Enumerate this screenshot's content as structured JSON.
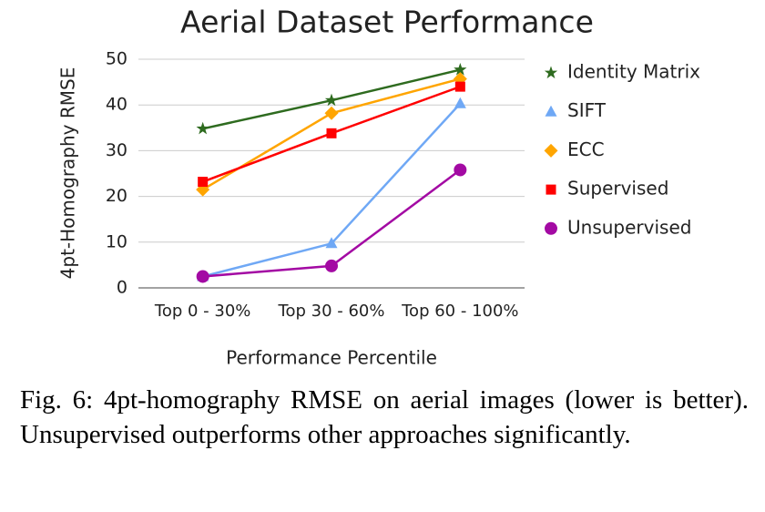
{
  "chart_data": {
    "type": "line",
    "title": "Aerial Dataset Performance",
    "x_label": "Performance Percentile",
    "y_label": "4pt-Homography RMSE",
    "categories": [
      "Top 0 - 30%",
      "Top 30 - 60%",
      "Top 60 - 100%"
    ],
    "series": [
      {
        "name": "Identity Matrix",
        "color": "#2e6b1f",
        "marker": "star",
        "values": [
          34.8,
          41,
          47.7
        ]
      },
      {
        "name": "SIFT",
        "color": "#6fa8f5",
        "marker": "triangle",
        "values": [
          2.5,
          9.7,
          40.3
        ]
      },
      {
        "name": "ECC",
        "color": "#ffa500",
        "marker": "diamond",
        "values": [
          21.5,
          38.2,
          45.7
        ]
      },
      {
        "name": "Supervised",
        "color": "#ff0000",
        "marker": "square",
        "values": [
          23.2,
          33.8,
          44
        ]
      },
      {
        "name": "Unsupervised",
        "color": "#a30aa3",
        "marker": "circle",
        "values": [
          2.5,
          4.8,
          25.8
        ]
      }
    ],
    "ylim": [
      0,
      50
    ],
    "yticks": [
      0,
      10,
      20,
      30,
      40,
      50
    ],
    "grid": true,
    "legend": "right"
  },
  "caption": "Fig. 6: 4pt-homography RMSE on aerial images (lower is better). Unsupervised outperforms other approaches significantly."
}
